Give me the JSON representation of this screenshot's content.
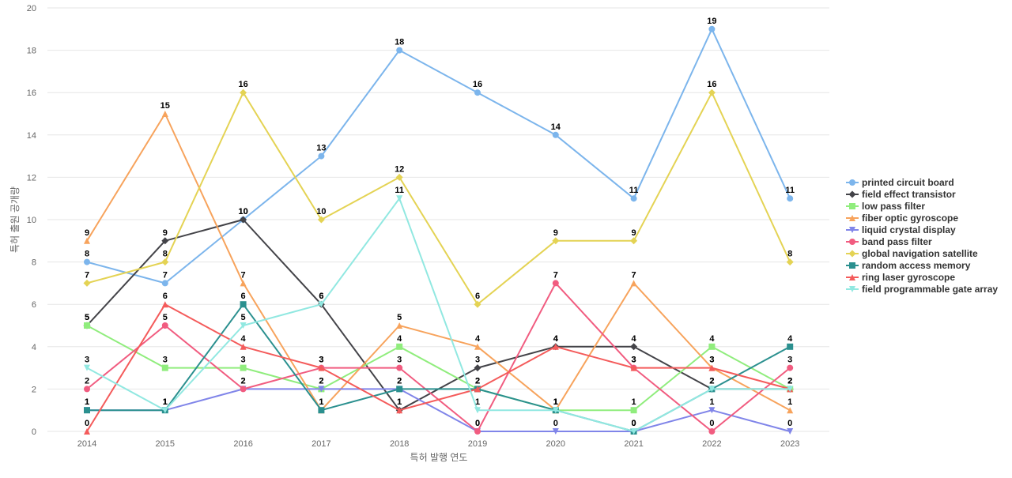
{
  "chart_data": {
    "type": "line",
    "title": "",
    "xlabel": "특허 발행 연도",
    "ylabel": "특허 출원 공개량",
    "x": [
      "2014",
      "2015",
      "2016",
      "2017",
      "2018",
      "2019",
      "2020",
      "2021",
      "2022",
      "2023"
    ],
    "ylim": [
      0,
      20
    ],
    "yticks": [
      0,
      2,
      4,
      6,
      8,
      10,
      12,
      14,
      16,
      18,
      20
    ],
    "grid": true,
    "legend_position": "right",
    "series": [
      {
        "name": "printed circuit board",
        "color": "#7cb5ec",
        "marker": "circle",
        "values": [
          8,
          7,
          10,
          13,
          18,
          16,
          14,
          11,
          19,
          11
        ]
      },
      {
        "name": "field effect transistor",
        "color": "#434348",
        "marker": "diamond",
        "values": [
          5,
          9,
          10,
          6,
          1,
          3,
          4,
          4,
          2,
          2
        ]
      },
      {
        "name": "low pass filter",
        "color": "#90ed7d",
        "marker": "square",
        "values": [
          5,
          3,
          3,
          2,
          4,
          2,
          1,
          1,
          4,
          2
        ]
      },
      {
        "name": "fiber optic gyroscope",
        "color": "#f7a35c",
        "marker": "triangle",
        "values": [
          9,
          15,
          7,
          1,
          5,
          4,
          1,
          7,
          3,
          1
        ]
      },
      {
        "name": "liquid crystal display",
        "color": "#8085e9",
        "marker": "triangle-down",
        "values": [
          1,
          1,
          2,
          2,
          2,
          0,
          0,
          0,
          1,
          0
        ]
      },
      {
        "name": "band pass filter",
        "color": "#f15c80",
        "marker": "circle",
        "values": [
          2,
          5,
          2,
          3,
          3,
          0,
          7,
          3,
          0,
          3
        ]
      },
      {
        "name": "global navigation satellite",
        "color": "#e4d354",
        "marker": "diamond",
        "values": [
          7,
          8,
          16,
          10,
          12,
          6,
          9,
          9,
          16,
          8
        ]
      },
      {
        "name": "random access memory",
        "color": "#2b908f",
        "marker": "square",
        "values": [
          1,
          1,
          6,
          1,
          2,
          2,
          1,
          0,
          2,
          4
        ]
      },
      {
        "name": "ring laser gyroscope",
        "color": "#f45b5b",
        "marker": "triangle",
        "values": [
          0,
          6,
          4,
          3,
          1,
          2,
          4,
          3,
          3,
          2
        ]
      },
      {
        "name": "field programmable gate array",
        "color": "#91e8e1",
        "marker": "triangle-down",
        "values": [
          3,
          1,
          5,
          6,
          11,
          1,
          1,
          0,
          2,
          2
        ]
      }
    ]
  }
}
